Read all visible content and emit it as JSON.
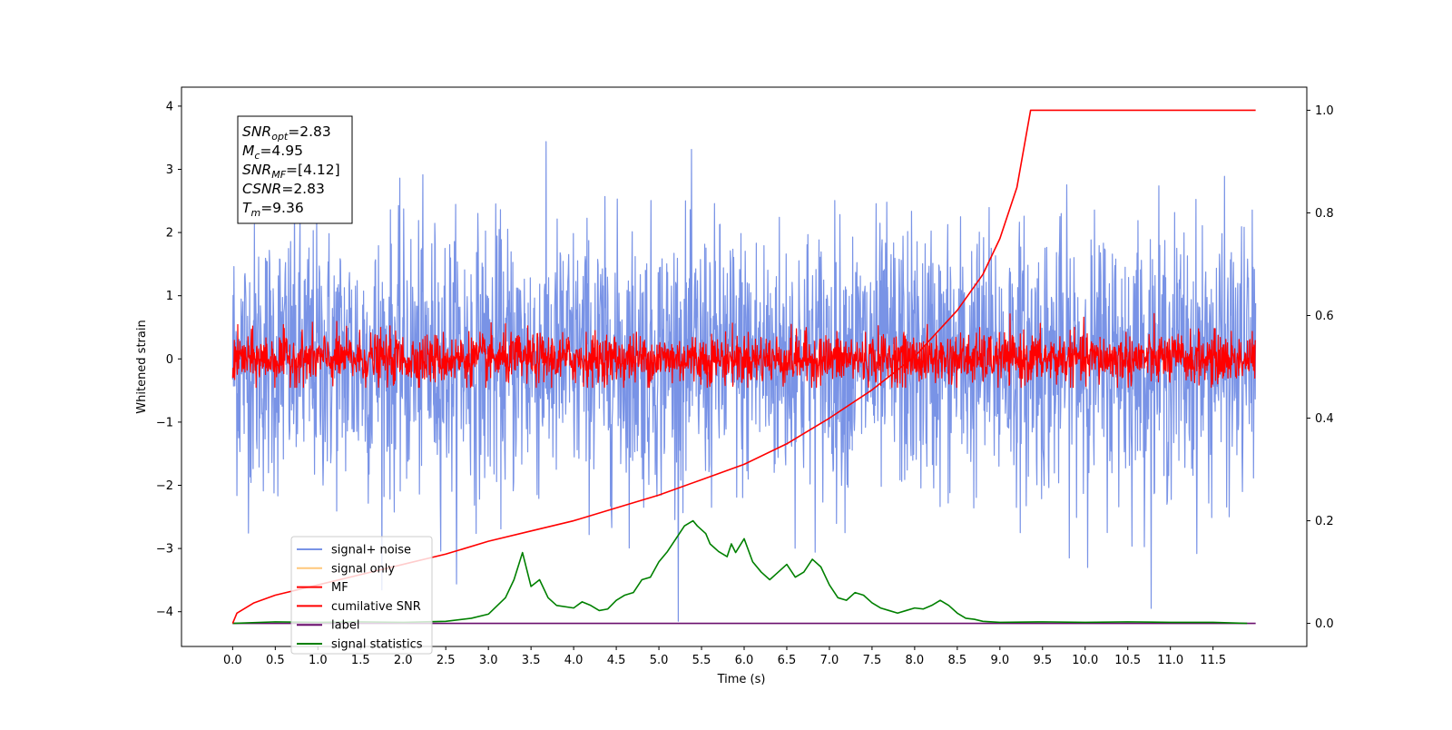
{
  "chart_data": {
    "type": "line",
    "xlabel": "Time (s)",
    "ylabel": "Whitened strain",
    "xlim": [
      -0.6,
      12.6
    ],
    "ylim": [
      -4.55,
      4.3
    ],
    "ylim_right": [
      -0.045,
      1.045
    ],
    "xticks": [
      "0.0",
      "0.5",
      "1.0",
      "1.5",
      "2.0",
      "2.5",
      "3.0",
      "3.5",
      "4.0",
      "4.5",
      "5.0",
      "5.5",
      "6.0",
      "6.5",
      "7.0",
      "7.5",
      "8.0",
      "8.5",
      "9.0",
      "9.5",
      "10.0",
      "10.5",
      "11.0",
      "11.5"
    ],
    "yticks_left": [
      "4",
      "3",
      "2",
      "1",
      "0",
      "−1",
      "−2",
      "−3",
      "−4"
    ],
    "yticks_right": [
      "1.0",
      "0.8",
      "0.6",
      "0.4",
      "0.2",
      "0.0"
    ],
    "info_box": {
      "lines": [
        {
          "main": "SNR",
          "sub": "opt",
          "rest": "=2.83"
        },
        {
          "main": "M",
          "sub": "c",
          "rest": "=4.95"
        },
        {
          "main": "SNR",
          "sub": "MF",
          "rest": "=[4.12]"
        },
        {
          "main": "CSNR",
          "sub": "",
          "rest": "=2.83"
        },
        {
          "main": "T",
          "sub": "m",
          "rest": "=9.36"
        }
      ]
    },
    "legend_position": "lower-left",
    "series": [
      {
        "name": "signal+ noise",
        "color": "#7993e6",
        "axis": "left",
        "x_range": [
          0,
          12
        ],
        "envelope_max": 3.92,
        "envelope_min": -4.15
      },
      {
        "name": "signal only",
        "color": "#ffc77a",
        "axis": "left",
        "x_range": [
          0,
          12
        ],
        "values": []
      },
      {
        "name": "MF",
        "color": "#ff0000",
        "axis": "left",
        "x_range": [
          0,
          12
        ],
        "envelope_max": 1.0,
        "envelope_min": -0.45
      },
      {
        "name": "cumilative SNR",
        "color": "#ff0000",
        "axis": "right",
        "x": [
          0,
          0.05,
          0.25,
          0.5,
          1.0,
          1.5,
          2.0,
          2.5,
          3.0,
          3.5,
          4.0,
          4.5,
          5.0,
          5.5,
          6.0,
          6.5,
          7.0,
          7.5,
          8.0,
          8.5,
          8.8,
          9.0,
          9.2,
          9.36,
          12.0
        ],
        "y": [
          0.0,
          0.02,
          0.04,
          0.055,
          0.075,
          0.095,
          0.115,
          0.135,
          0.16,
          0.18,
          0.2,
          0.225,
          0.25,
          0.28,
          0.31,
          0.35,
          0.4,
          0.455,
          0.52,
          0.61,
          0.68,
          0.75,
          0.85,
          1.0,
          1.0
        ]
      },
      {
        "name": "label",
        "color": "#6a0f6e",
        "axis": "right",
        "x": [
          0,
          12
        ],
        "y": [
          0.0,
          0.0
        ]
      },
      {
        "name": "signal statistics",
        "color": "#008000",
        "axis": "right",
        "x": [
          0,
          0.5,
          1.0,
          1.5,
          2.0,
          2.5,
          2.8,
          3.0,
          3.2,
          3.3,
          3.4,
          3.5,
          3.6,
          3.7,
          3.8,
          4.0,
          4.1,
          4.2,
          4.3,
          4.4,
          4.5,
          4.6,
          4.7,
          4.8,
          4.9,
          5.0,
          5.1,
          5.2,
          5.3,
          5.4,
          5.45,
          5.55,
          5.6,
          5.7,
          5.8,
          5.85,
          5.9,
          6.0,
          6.1,
          6.2,
          6.3,
          6.4,
          6.5,
          6.6,
          6.7,
          6.8,
          6.9,
          7.0,
          7.1,
          7.2,
          7.3,
          7.4,
          7.5,
          7.6,
          7.7,
          7.8,
          7.9,
          8.0,
          8.1,
          8.2,
          8.3,
          8.4,
          8.5,
          8.6,
          8.7,
          8.8,
          9.0,
          9.5,
          10.0,
          10.5,
          11.0,
          11.5,
          11.9
        ],
        "y": [
          0.0,
          0.003,
          0.002,
          0.003,
          0.002,
          0.004,
          0.01,
          0.018,
          0.05,
          0.085,
          0.138,
          0.072,
          0.085,
          0.05,
          0.035,
          0.03,
          0.042,
          0.035,
          0.025,
          0.028,
          0.045,
          0.055,
          0.06,
          0.085,
          0.09,
          0.12,
          0.14,
          0.165,
          0.19,
          0.2,
          0.19,
          0.175,
          0.155,
          0.14,
          0.13,
          0.155,
          0.138,
          0.165,
          0.12,
          0.1,
          0.085,
          0.1,
          0.115,
          0.09,
          0.1,
          0.125,
          0.11,
          0.075,
          0.05,
          0.045,
          0.06,
          0.055,
          0.04,
          0.03,
          0.025,
          0.02,
          0.025,
          0.03,
          0.028,
          0.035,
          0.045,
          0.035,
          0.02,
          0.01,
          0.008,
          0.004,
          0.002,
          0.003,
          0.002,
          0.003,
          0.002,
          0.002,
          0.0
        ]
      }
    ]
  }
}
